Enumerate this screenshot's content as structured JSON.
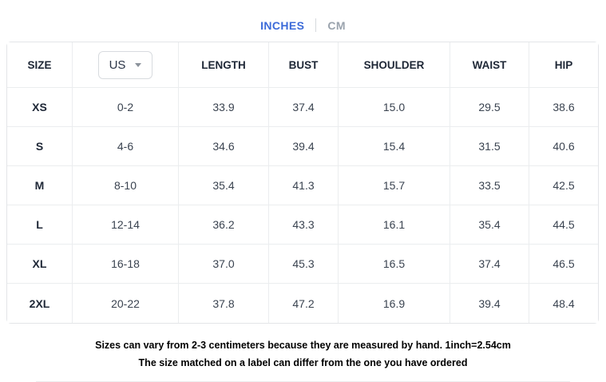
{
  "tabs": {
    "inches_label": "INCHES",
    "cm_label": "CM",
    "active": "INCHES"
  },
  "table": {
    "headers": [
      "SIZE",
      "US",
      "LENGTH",
      "BUST",
      "SHOULDER",
      "WAIST",
      "HIP"
    ],
    "unit_dropdown": {
      "selected": "US"
    },
    "rows": [
      {
        "size": "XS",
        "us": "0-2",
        "length": "33.9",
        "bust": "37.4",
        "shoulder": "15.0",
        "waist": "29.5",
        "hip": "38.6"
      },
      {
        "size": "S",
        "us": "4-6",
        "length": "34.6",
        "bust": "39.4",
        "shoulder": "15.4",
        "waist": "31.5",
        "hip": "40.6"
      },
      {
        "size": "M",
        "us": "8-10",
        "length": "35.4",
        "bust": "41.3",
        "shoulder": "15.7",
        "waist": "33.5",
        "hip": "42.5"
      },
      {
        "size": "L",
        "us": "12-14",
        "length": "36.2",
        "bust": "43.3",
        "shoulder": "16.1",
        "waist": "35.4",
        "hip": "44.5"
      },
      {
        "size": "XL",
        "us": "16-18",
        "length": "37.0",
        "bust": "45.3",
        "shoulder": "16.5",
        "waist": "37.4",
        "hip": "46.5"
      },
      {
        "size": "2XL",
        "us": "20-22",
        "length": "37.8",
        "bust": "47.2",
        "shoulder": "16.9",
        "waist": "39.4",
        "hip": "48.4"
      }
    ]
  },
  "notes": [
    "Sizes can vary from 2-3 centimeters because they are measured by hand. 1inch=2.54cm",
    "The size matched on a label can differ from the one you have ordered"
  ],
  "colors": {
    "active_tab_blue": "#3c6bd9",
    "inactive_tab_gray": "#9aa3ad",
    "table_border": "#e3e5e8",
    "grid_line": "#ebedef",
    "header_text": "#1e2736",
    "cell_text": "#3a4350"
  }
}
